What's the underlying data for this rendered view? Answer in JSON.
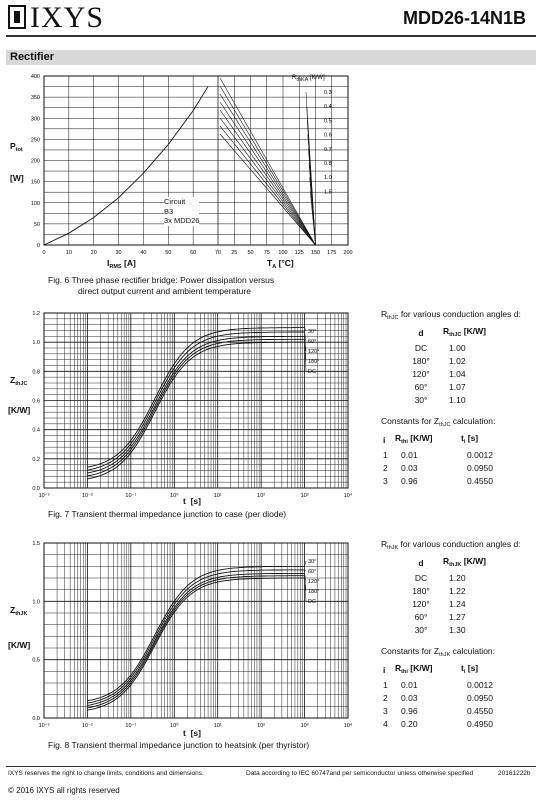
{
  "header": {
    "logo": "IXYS",
    "part_number": "MDD26-14N1B"
  },
  "section_title": "Rectifier",
  "fig6": {
    "caption_line1": "Fig. 6  Three phase rectifier bridge: Power dissipation versus",
    "caption_line2": "direct output current and ambient temperature",
    "ylabel_main": "P",
    "ylabel_sub": "tot",
    "yunit": "[W]",
    "xlabel_left_main": "I",
    "xlabel_left_sub": "RMS",
    "xunit_left": "[A]",
    "xlabel_right_main": "T",
    "xlabel_right_sub": "A",
    "xunit_right": "[°C]",
    "legend_title_main": "R",
    "legend_title_sub": "thKA",
    "legend_unit": "[K/W]",
    "circuit": [
      "Circuit",
      "B3",
      "3x MDD26"
    ]
  },
  "fig7": {
    "caption": "Fig. 7  Transient thermal impedance junction to case (per diode)",
    "ylabel_main": "Z",
    "ylabel_sub": "thJC",
    "yunit": "[K/W]",
    "xlabel": "t",
    "xunit": "[s]",
    "table_title_pre": "R",
    "table_title_sub": "thJC",
    "table_title_post": " for various conduction angles d:",
    "col_d": "d",
    "col_r_main": "R",
    "col_r_sub": "thJC",
    "col_r_unit": " [K/W]",
    "rows": [
      [
        "DC",
        "1.00"
      ],
      [
        "180°",
        "1.02"
      ],
      [
        "120°",
        "1.04"
      ],
      [
        "60°",
        "1.07"
      ],
      [
        "30°",
        "1.10"
      ]
    ],
    "const_title_pre": "Constants for Z",
    "const_title_sub": "thJC",
    "const_title_post": " calculation:",
    "const_col_i": "i",
    "const_col_r_main": "R",
    "const_col_r_sub": "thi",
    "const_col_r_unit": " [K/W]",
    "const_col_t_main": "t",
    "const_col_t_sub": "i",
    "const_col_t_unit": " [s]",
    "consts": [
      [
        "1",
        "0.01",
        "0.0012"
      ],
      [
        "2",
        "0.03",
        "0.0950"
      ],
      [
        "3",
        "0.96",
        "0.4550"
      ]
    ]
  },
  "fig8": {
    "caption": "Fig. 8  Transient thermal impedance junction to heatsink (per thyristor)",
    "ylabel_main": "Z",
    "ylabel_sub": "thJK",
    "yunit": "[K/W]",
    "xlabel": "t",
    "xunit": "[s]",
    "table_title_pre": "R",
    "table_title_sub": "thJK",
    "table_title_post": " for various conduction angles d:",
    "col_d": "d",
    "col_r_main": "R",
    "col_r_sub": "thJK",
    "col_r_unit": " [K/W]",
    "rows": [
      [
        "DC",
        "1.20"
      ],
      [
        "180°",
        "1.22"
      ],
      [
        "120°",
        "1.24"
      ],
      [
        "60°",
        "1.27"
      ],
      [
        "30°",
        "1.30"
      ]
    ],
    "const_title_pre": "Constants for Z",
    "const_title_sub": "thJK",
    "const_title_post": " calculation:",
    "const_col_i": "i",
    "const_col_r_main": "R",
    "const_col_r_sub": "thi",
    "const_col_r_unit": " [K/W]",
    "const_col_t_main": "t",
    "const_col_t_sub": "i",
    "const_col_t_unit": " [s]",
    "consts": [
      [
        "1",
        "0.01",
        "0.0012"
      ],
      [
        "2",
        "0.03",
        "0.0950"
      ],
      [
        "3",
        "0.96",
        "0.4550"
      ],
      [
        "4",
        "0.20",
        "0.4950"
      ]
    ]
  },
  "footer": {
    "left": "IXYS reserves the right to change limits, conditions and dimensions.",
    "middle": "Data according to IEC 60747and per semiconductor unless otherwise specified",
    "right": "20161222b",
    "copyright": "© 2016 IXYS all rights reserved"
  },
  "chart_data": [
    {
      "type": "line",
      "title": "",
      "left_panel": {
        "xlabel": "IRMS [A]",
        "ylabel": "Ptot [W]",
        "xlim": [
          0,
          70
        ],
        "ylim": [
          0,
          400
        ],
        "xticks": [
          0,
          10,
          20,
          30,
          40,
          50,
          60,
          70
        ],
        "yticks": [
          0,
          25,
          50,
          75,
          100,
          125,
          150,
          175,
          200,
          225,
          250,
          275,
          300,
          325,
          350,
          375,
          400
        ],
        "ytick_labels": [
          "0",
          "",
          "50",
          "",
          "100",
          "",
          "150",
          "",
          "200",
          "",
          "250",
          "",
          "300",
          "",
          "350",
          "",
          "400"
        ],
        "series": [
          {
            "x": [
              0,
              10,
              20,
              30,
              40,
              50,
              60,
              66
            ],
            "y": [
              0,
              28,
              65,
              112,
              170,
              238,
              318,
              375
            ]
          }
        ]
      },
      "right_panel": {
        "xlabel": "TA [°C]",
        "xlim": [
          0,
          200
        ],
        "xticks": [
          0,
          25,
          50,
          75,
          100,
          125,
          150,
          175,
          200
        ],
        "xtick_labels": [
          "0",
          "25",
          "50",
          "75",
          "100",
          "125",
          "150",
          "175",
          "200"
        ],
        "rthka_values": [
          "0.3",
          "0.4",
          "0.5",
          "0.6",
          "0.7",
          "0.8",
          "1.0",
          "1.5"
        ],
        "ambient_limit": 150
      },
      "grid": true
    },
    {
      "type": "line",
      "xlabel": "t [s]",
      "ylabel": "ZthJC [K/W]",
      "xscale": "log",
      "xlim": [
        0.001,
        10000
      ],
      "ylim": [
        0,
        1.2
      ],
      "xtick_labels": [
        "10⁻³",
        "10⁻²",
        "10⁻¹",
        "10⁰",
        "10¹",
        "10²",
        "10³",
        "10⁴"
      ],
      "ytick_labels": [
        "0.0",
        "0.2",
        "0.4",
        "0.6",
        "0.8",
        "1.0",
        "1.2"
      ],
      "series": [
        {
          "name": "30°",
          "final": 1.1,
          "start": 0.12
        },
        {
          "name": "60°",
          "final": 1.07,
          "start": 0.1
        },
        {
          "name": "120°",
          "final": 1.04,
          "start": 0.08
        },
        {
          "name": "180°",
          "final": 1.02,
          "start": 0.06
        },
        {
          "name": "DC",
          "final": 1.0,
          "start": 0.04
        }
      ],
      "grid": true
    },
    {
      "type": "line",
      "xlabel": "t [s]",
      "ylabel": "ZthJK [K/W]",
      "xscale": "log",
      "xlim": [
        0.001,
        10000
      ],
      "ylim": [
        0,
        1.5
      ],
      "xtick_labels": [
        "10⁻³",
        "10⁻²",
        "10⁻¹",
        "10⁰",
        "10¹",
        "10²",
        "10³",
        "10⁴"
      ],
      "ytick_labels": [
        "0.0",
        "0.5",
        "1.0",
        "1.5"
      ],
      "series": [
        {
          "name": "30°",
          "final": 1.3,
          "start": 0.12
        },
        {
          "name": "60°",
          "final": 1.27,
          "start": 0.1
        },
        {
          "name": "120°",
          "final": 1.24,
          "start": 0.08
        },
        {
          "name": "180°",
          "final": 1.22,
          "start": 0.06
        },
        {
          "name": "DC",
          "final": 1.2,
          "start": 0.04
        }
      ],
      "grid": true
    }
  ]
}
